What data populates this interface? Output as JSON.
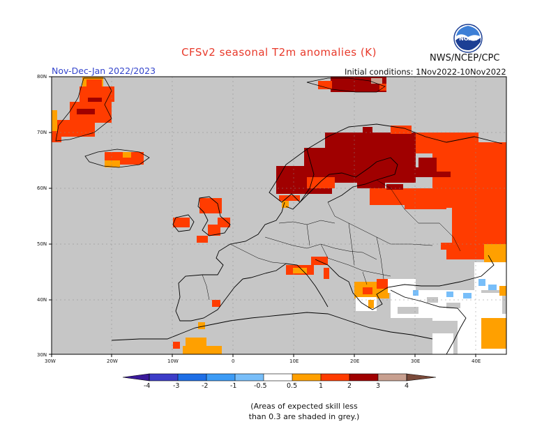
{
  "header": {
    "title": "CFSv2 seasonal T2m anomalies (K)",
    "season": "Nov-Dec-Jan 2022/2023",
    "initial_conditions": "Initial conditions: 1Nov2022-10Nov2022",
    "agency": "NWS/NCEP/CPC",
    "logo_text": "NOAA"
  },
  "axes": {
    "lat_labels": [
      "80N",
      "70N",
      "60N",
      "50N",
      "40N",
      "30N"
    ],
    "lon_labels": [
      "30W",
      "20W",
      "10W",
      "0",
      "10E",
      "20E",
      "30E",
      "40E"
    ],
    "lat_range": [
      30,
      80
    ],
    "lon_range": [
      -30,
      45
    ]
  },
  "colorbar": {
    "labels": [
      "-4",
      "-3",
      "-2",
      "-1",
      "-0.5",
      "0.5",
      "1",
      "2",
      "3",
      "4"
    ],
    "colors": {
      "lt_m4": "#3a1a9a",
      "m4_m3": "#3c3cc8",
      "m3_m2": "#1e6ee6",
      "m2_m1": "#3c9bf5",
      "m1_m05": "#78bef9",
      "neutral": "#ffffff",
      "p05_1": "#ffa000",
      "p1_2": "#ff3c00",
      "p2_3": "#a00000",
      "p3_4": "#c8a090",
      "gt_4": "#7a4a3a"
    }
  },
  "map_colors": {
    "grey_low_skill": "#c6c6c6",
    "white_neutral": "#ffffff"
  },
  "note": {
    "line1": "(Areas of expected skill less",
    "line2": "than 0.3 are shaded in grey.)"
  }
}
